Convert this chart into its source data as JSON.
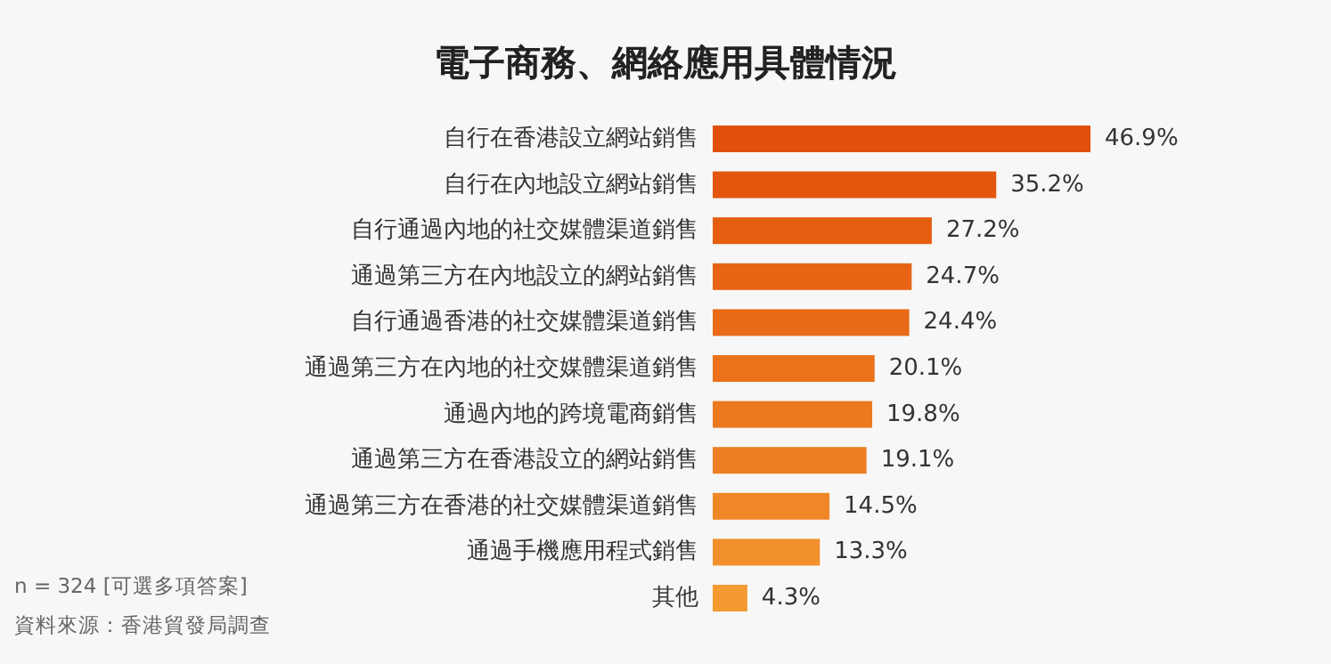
{
  "chart_data": {
    "type": "bar",
    "orientation": "horizontal",
    "title": "電子商務、網絡應用具體情況",
    "categories": [
      "自行在香港設立網站銷售",
      "自行在內地設立網站銷售",
      "自行通過內地的社交媒體渠道銷售",
      "通過第三方在內地設立的網站銷售",
      "自行通過香港的社交媒體渠道銷售",
      "通過第三方在內地的社交媒體渠道銷售",
      "通過內地的跨境電商銷售",
      "通過第三方在香港設立的網站銷售",
      "通過第三方在香港的社交媒體渠道銷售",
      "通過手機應用程式銷售",
      "其他"
    ],
    "values": [
      46.9,
      35.2,
      27.2,
      24.7,
      24.4,
      20.1,
      19.8,
      19.1,
      14.5,
      13.3,
      4.3
    ],
    "value_labels": [
      "46.9%",
      "35.2%",
      "27.2%",
      "24.7%",
      "24.4%",
      "20.1%",
      "19.8%",
      "19.1%",
      "14.5%",
      "13.3%",
      "4.3%"
    ],
    "colors": [
      "#e1500b",
      "#e3560e",
      "#e55d11",
      "#e76414",
      "#e96b17",
      "#eb721b",
      "#ed791f",
      "#ee8023",
      "#f08727",
      "#f2902b",
      "#f39a30"
    ],
    "annotations": [
      "n = 324 [可選多項答案]",
      "資料來源：香港貿發局調查"
    ]
  }
}
